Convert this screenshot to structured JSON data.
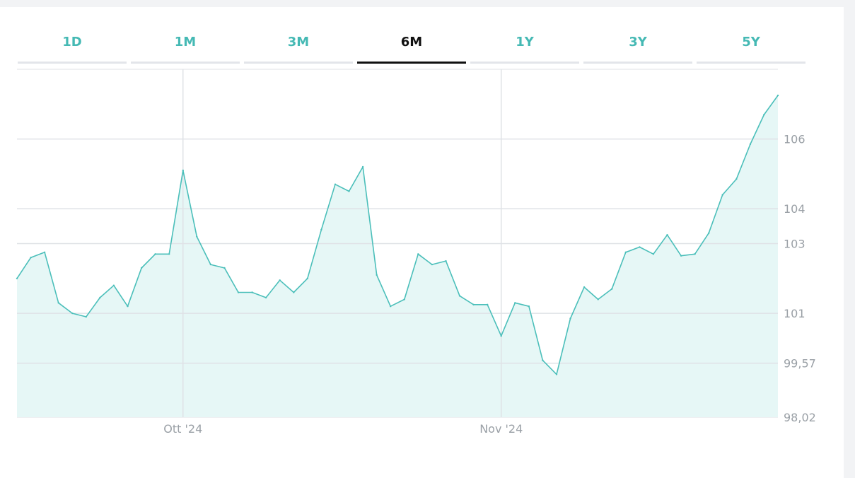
{
  "tabs": [
    {
      "label": "1D",
      "active": false
    },
    {
      "label": "1M",
      "active": false
    },
    {
      "label": "3M",
      "active": false
    },
    {
      "label": "6M",
      "active": true
    },
    {
      "label": "1Y",
      "active": false
    },
    {
      "label": "3Y",
      "active": false
    },
    {
      "label": "5Y",
      "active": false
    }
  ],
  "chart_data": {
    "type": "area",
    "title": "",
    "xlabel": "",
    "ylabel": "",
    "ylim": [
      98.02,
      108
    ],
    "grid": true,
    "x_ticks": [
      "Ott '24",
      "Nov '24"
    ],
    "y_ticks": [
      "98,02",
      "99,57",
      "101",
      "103",
      "104",
      "106"
    ],
    "y_tick_values": [
      98.02,
      99.57,
      101,
      103,
      104,
      106
    ],
    "colors": {
      "line": "#4bbfba",
      "fill": "#e6f7f6",
      "grid": "#dfe2e6",
      "tick": "#9aa0a6"
    },
    "series": [
      {
        "values": [
          102.0,
          102.6,
          102.75,
          101.3,
          101.0,
          100.9,
          101.45,
          101.8,
          101.2,
          102.3,
          102.7,
          102.7,
          105.1,
          103.2,
          102.4,
          102.3,
          101.6,
          101.6,
          101.45,
          101.95,
          101.6,
          102.0,
          103.4,
          104.7,
          104.5,
          105.2,
          102.1,
          101.2,
          101.4,
          102.7,
          102.4,
          102.5,
          101.5,
          101.25,
          101.25,
          100.35,
          101.3,
          101.2,
          99.65,
          99.25,
          100.85,
          101.75,
          101.4,
          101.7,
          102.75,
          102.9,
          102.7,
          103.25,
          102.65,
          102.7,
          103.3,
          104.4,
          104.85,
          105.85,
          106.7,
          107.25
        ]
      }
    ]
  }
}
